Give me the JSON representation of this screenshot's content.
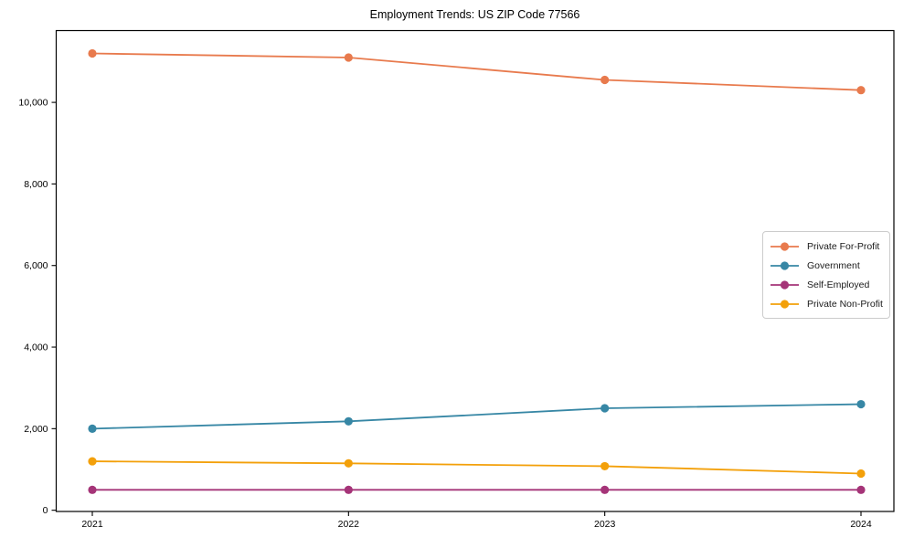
{
  "chart_data": {
    "type": "line",
    "title": "Employment Trends: US ZIP Code 77566",
    "xlabel": "",
    "ylabel": "",
    "categories": [
      "2021",
      "2022",
      "2023",
      "2024"
    ],
    "series": [
      {
        "name": "Private For-Profit",
        "color": "#e87a4d",
        "values": [
          11200,
          11100,
          10550,
          10300
        ]
      },
      {
        "name": "Government",
        "color": "#3787a5",
        "values": [
          2000,
          2180,
          2500,
          2600
        ]
      },
      {
        "name": "Self-Employed",
        "color": "#a53478",
        "values": [
          500,
          500,
          500,
          500
        ]
      },
      {
        "name": "Private Non-Profit",
        "color": "#f3a00a",
        "values": [
          1200,
          1150,
          1080,
          900
        ]
      }
    ],
    "yticks": [
      0,
      2000,
      4000,
      6000,
      8000,
      10000
    ],
    "ytick_labels": [
      "0",
      "2,000",
      "4,000",
      "6,000",
      "8,000",
      "10,000"
    ],
    "ylim": [
      -30,
      11760
    ],
    "grid": false,
    "marker": "circle",
    "legend_position": "center-right",
    "axis_color": "#000000",
    "background_color": "#ffffff"
  }
}
